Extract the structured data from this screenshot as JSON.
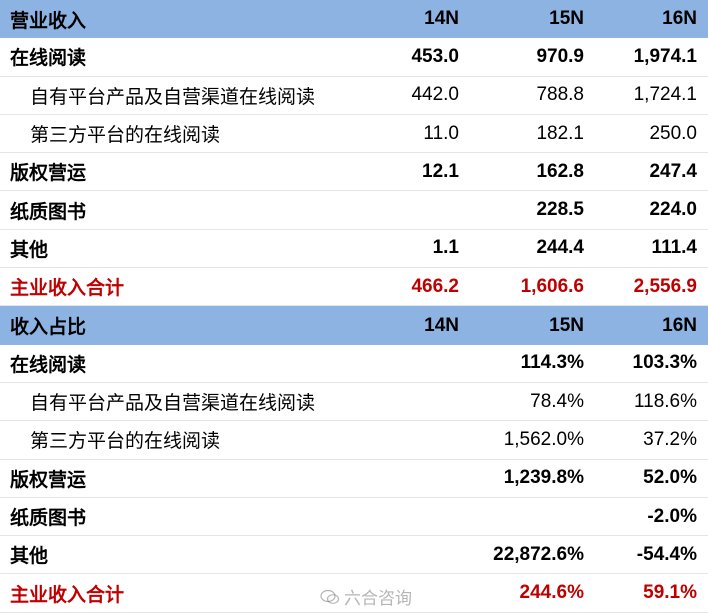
{
  "sections": [
    {
      "header": {
        "label": "营业收入",
        "cols": [
          "14N",
          "15N",
          "16N"
        ]
      },
      "rows": [
        {
          "label": "在线阅读",
          "style": "bold",
          "values": [
            "453.0",
            "970.9",
            "1,974.1"
          ]
        },
        {
          "label": "自有平台产品及自营渠道在线阅读",
          "style": "sub",
          "values": [
            "442.0",
            "788.8",
            "1,724.1"
          ]
        },
        {
          "label": "第三方平台的在线阅读",
          "style": "sub",
          "values": [
            "11.0",
            "182.1",
            "250.0"
          ]
        },
        {
          "label": "版权营运",
          "style": "bold",
          "values": [
            "12.1",
            "162.8",
            "247.4"
          ]
        },
        {
          "label": "纸质图书",
          "style": "bold",
          "values": [
            "",
            "228.5",
            "224.0"
          ]
        },
        {
          "label": "其他",
          "style": "bold",
          "values": [
            "1.1",
            "244.4",
            "111.4"
          ]
        },
        {
          "label": "主业收入合计",
          "style": "red",
          "values": [
            "466.2",
            "1,606.6",
            "2,556.9"
          ]
        }
      ]
    },
    {
      "header": {
        "label": "收入占比",
        "cols": [
          "14N",
          "15N",
          "16N"
        ]
      },
      "rows": [
        {
          "label": "在线阅读",
          "style": "bold",
          "values": [
            "",
            "114.3%",
            "103.3%"
          ]
        },
        {
          "label": "自有平台产品及自营渠道在线阅读",
          "style": "sub",
          "values": [
            "",
            "78.4%",
            "118.6%"
          ]
        },
        {
          "label": "第三方平台的在线阅读",
          "style": "sub",
          "values": [
            "",
            "1,562.0%",
            "37.2%"
          ]
        },
        {
          "label": "版权营运",
          "style": "bold",
          "values": [
            "",
            "1,239.8%",
            "52.0%"
          ]
        },
        {
          "label": "纸质图书",
          "style": "bold",
          "values": [
            "",
            "",
            "-2.0%"
          ]
        },
        {
          "label": "其他",
          "style": "bold",
          "values": [
            "",
            "22,872.6%",
            "-54.4%"
          ]
        },
        {
          "label": "主业收入合计",
          "style": "red",
          "values": [
            "",
            "244.6%",
            "59.1%"
          ]
        }
      ]
    }
  ],
  "colors": {
    "header_bg": "#8db3e2",
    "total_text": "#c00000"
  },
  "watermark": {
    "icon": "wechat-icon",
    "text": "六合咨询"
  }
}
